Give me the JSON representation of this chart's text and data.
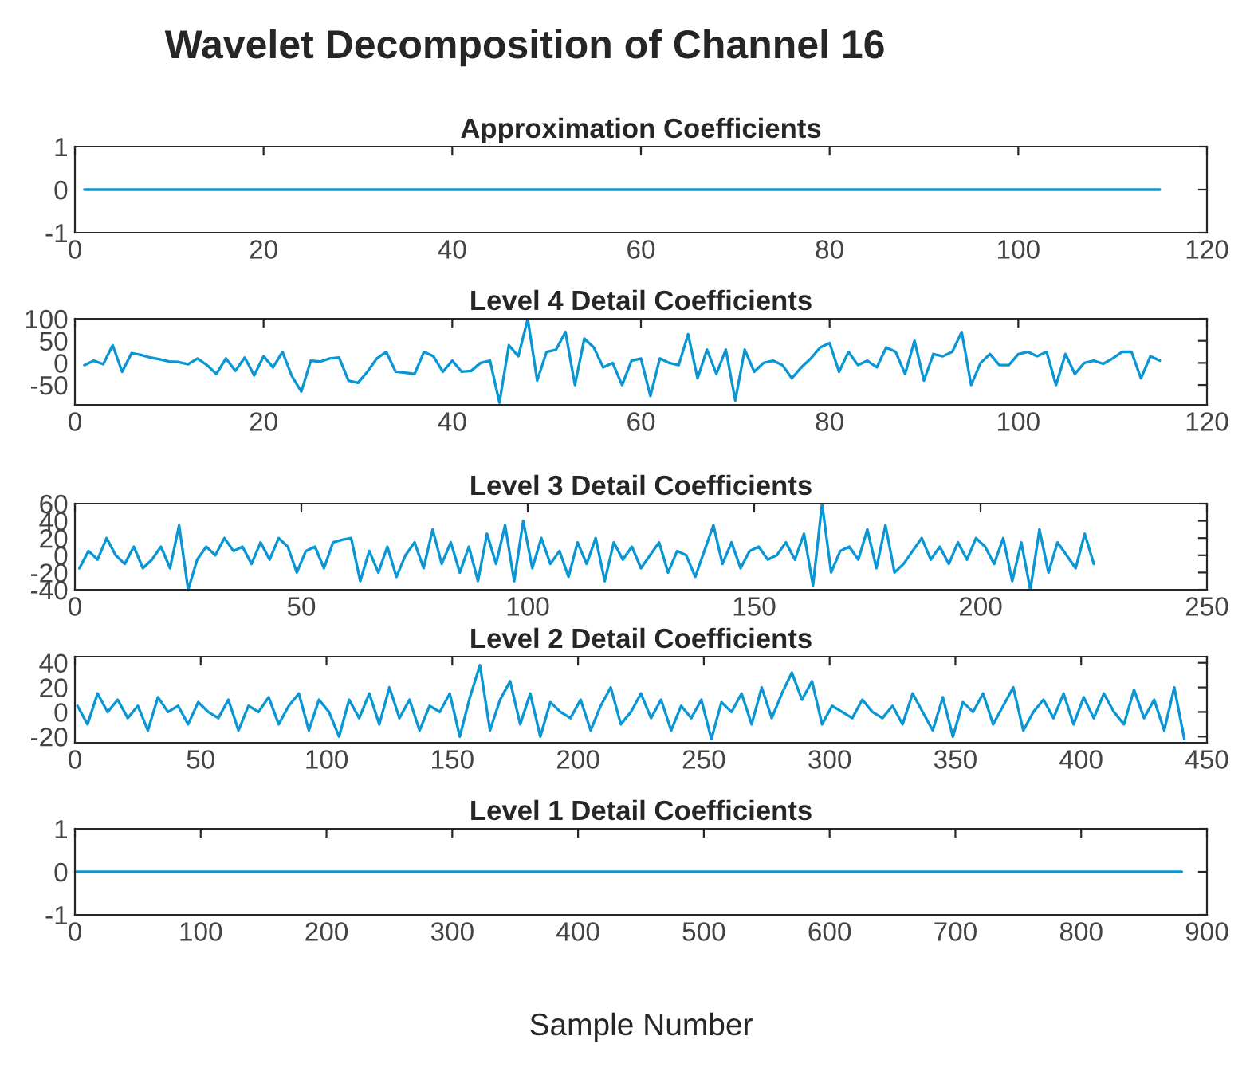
{
  "chart_data": [
    {
      "type": "line",
      "title": "Approximation Coefficients",
      "annotations": [
        "Wavelet Decomposition of Channel 16"
      ],
      "xlim": [
        0,
        120
      ],
      "xticks": [
        0,
        20,
        40,
        60,
        80,
        100,
        120
      ],
      "ylim": [
        -1,
        1
      ],
      "yticks": [
        -1,
        0,
        1
      ],
      "series": [
        {
          "color": "#0a96d4",
          "x": [
            1,
            115
          ],
          "values": [
            0,
            0
          ]
        }
      ]
    },
    {
      "type": "line",
      "title": "Level 4 Detail Coefficients",
      "xlim": [
        0,
        120
      ],
      "xticks": [
        0,
        20,
        40,
        60,
        80,
        100,
        120
      ],
      "ylim": [
        -95,
        100
      ],
      "yticks": [
        -50,
        0,
        50,
        100
      ],
      "series": [
        {
          "color": "#0a96d4",
          "x": [
            1,
            2,
            3,
            4,
            5,
            6,
            7,
            8,
            9,
            10,
            11,
            12,
            13,
            14,
            15,
            16,
            17,
            18,
            19,
            20,
            21,
            22,
            23,
            24,
            25,
            26,
            27,
            28,
            29,
            30,
            31,
            32,
            33,
            34,
            35,
            36,
            37,
            38,
            39,
            40,
            41,
            42,
            43,
            44,
            45,
            46,
            47,
            48,
            49,
            50,
            51,
            52,
            53,
            54,
            55,
            56,
            57,
            58,
            59,
            60,
            61,
            62,
            63,
            64,
            65,
            66,
            67,
            68,
            69,
            70,
            71,
            72,
            73,
            74,
            75,
            76,
            77,
            78,
            79,
            80,
            81,
            82,
            83,
            84,
            85,
            86,
            87,
            88,
            89,
            90,
            91,
            92,
            93,
            94,
            95,
            96,
            97,
            98,
            99,
            100,
            101,
            102,
            103,
            104,
            105,
            106,
            107,
            108,
            109,
            110,
            111,
            112,
            113,
            114,
            115
          ],
          "values": [
            -5,
            5,
            -3,
            40,
            -20,
            22,
            18,
            12,
            8,
            3,
            2,
            -3,
            10,
            -5,
            -25,
            10,
            -18,
            12,
            -28,
            15,
            -10,
            25,
            -30,
            -65,
            5,
            3,
            10,
            12,
            -40,
            -45,
            -20,
            10,
            25,
            -20,
            -22,
            -25,
            25,
            15,
            -20,
            5,
            -20,
            -18,
            0,
            5,
            -90,
            40,
            15,
            100,
            -40,
            25,
            30,
            70,
            -50,
            55,
            35,
            -10,
            0,
            -50,
            5,
            10,
            -75,
            10,
            0,
            -5,
            65,
            -35,
            30,
            -25,
            30,
            -85,
            30,
            -20,
            0,
            5,
            -5,
            -35,
            -10,
            10,
            35,
            45,
            -20,
            25,
            -5,
            5,
            -10,
            35,
            25,
            -25,
            50,
            -40,
            20,
            15,
            25,
            70,
            -50,
            0,
            20,
            -5,
            -5,
            20,
            25,
            15,
            25,
            -50,
            20,
            -25,
            0,
            5,
            -2,
            10,
            25,
            25,
            -35,
            15,
            5
          ]
        }
      ]
    },
    {
      "type": "line",
      "title": "Level 3 Detail Coefficients",
      "xlim": [
        0,
        250
      ],
      "xticks": [
        0,
        50,
        100,
        150,
        200,
        250
      ],
      "ylim": [
        -40,
        60
      ],
      "yticks": [
        -40,
        -20,
        0,
        20,
        40,
        60
      ],
      "series": [
        {
          "color": "#0a96d4",
          "x": [
            1,
            3,
            5,
            7,
            9,
            11,
            13,
            15,
            17,
            19,
            21,
            23,
            25,
            27,
            29,
            31,
            33,
            35,
            37,
            39,
            41,
            43,
            45,
            47,
            49,
            51,
            53,
            55,
            57,
            59,
            61,
            63,
            65,
            67,
            69,
            71,
            73,
            75,
            77,
            79,
            81,
            83,
            85,
            87,
            89,
            91,
            93,
            95,
            97,
            99,
            101,
            103,
            105,
            107,
            109,
            111,
            113,
            115,
            117,
            119,
            121,
            123,
            125,
            127,
            129,
            131,
            133,
            135,
            137,
            139,
            141,
            143,
            145,
            147,
            149,
            151,
            153,
            155,
            157,
            159,
            161,
            163,
            165,
            167,
            169,
            171,
            173,
            175,
            177,
            179,
            181,
            183,
            185,
            187,
            189,
            191,
            193,
            195,
            197,
            199,
            201,
            203,
            205,
            207,
            209,
            211,
            213,
            215,
            217,
            219,
            221,
            223,
            225
          ],
          "values": [
            -15,
            5,
            -5,
            20,
            0,
            -10,
            10,
            -15,
            -5,
            10,
            -15,
            35,
            -40,
            -5,
            10,
            0,
            20,
            5,
            10,
            -10,
            15,
            -5,
            20,
            10,
            -20,
            5,
            10,
            -15,
            15,
            18,
            20,
            -30,
            5,
            -20,
            10,
            -25,
            0,
            15,
            -15,
            30,
            -10,
            15,
            -20,
            10,
            -30,
            25,
            -10,
            35,
            -30,
            40,
            -15,
            20,
            -10,
            5,
            -25,
            15,
            -10,
            20,
            -30,
            15,
            -5,
            10,
            -15,
            0,
            15,
            -20,
            5,
            0,
            -25,
            5,
            35,
            -10,
            15,
            -15,
            5,
            10,
            -5,
            0,
            15,
            -5,
            25,
            -35,
            60,
            -20,
            5,
            10,
            -5,
            30,
            -15,
            35,
            -20,
            -10,
            5,
            20,
            -5,
            10,
            -10,
            15,
            -5,
            20,
            10,
            -10,
            20,
            -30,
            15,
            -40,
            30,
            -20,
            15,
            0,
            -15,
            25,
            -10
          ]
        }
      ]
    },
    {
      "type": "line",
      "title": "Level 2 Detail Coefficients",
      "xlim": [
        0,
        450
      ],
      "xticks": [
        0,
        50,
        100,
        150,
        200,
        250,
        300,
        350,
        400,
        450
      ],
      "ylim": [
        -25,
        45
      ],
      "yticks": [
        -20,
        0,
        20,
        40
      ],
      "series": [
        {
          "color": "#0a96d4",
          "x": [
            1,
            5,
            9,
            13,
            17,
            21,
            25,
            29,
            33,
            37,
            41,
            45,
            49,
            53,
            57,
            61,
            65,
            69,
            73,
            77,
            81,
            85,
            89,
            93,
            97,
            101,
            105,
            109,
            113,
            117,
            121,
            125,
            129,
            133,
            137,
            141,
            145,
            149,
            153,
            157,
            161,
            165,
            169,
            173,
            177,
            181,
            185,
            189,
            193,
            197,
            201,
            205,
            209,
            213,
            217,
            221,
            225,
            229,
            233,
            237,
            241,
            245,
            249,
            253,
            257,
            261,
            265,
            269,
            273,
            277,
            281,
            285,
            289,
            293,
            297,
            301,
            305,
            309,
            313,
            317,
            321,
            325,
            329,
            333,
            337,
            341,
            345,
            349,
            353,
            357,
            361,
            365,
            369,
            373,
            377,
            381,
            385,
            389,
            393,
            397,
            401,
            405,
            409,
            413,
            417,
            421,
            425,
            429,
            433,
            437,
            441
          ],
          "values": [
            5,
            -10,
            15,
            0,
            10,
            -5,
            5,
            -15,
            12,
            0,
            5,
            -10,
            8,
            0,
            -5,
            10,
            -15,
            5,
            0,
            12,
            -10,
            5,
            15,
            -15,
            10,
            0,
            -20,
            10,
            -5,
            15,
            -10,
            20,
            -5,
            10,
            -15,
            5,
            0,
            15,
            -20,
            12,
            38,
            -15,
            10,
            25,
            -10,
            15,
            -20,
            8,
            0,
            -5,
            10,
            -15,
            5,
            20,
            -10,
            0,
            15,
            -5,
            10,
            -15,
            5,
            -5,
            10,
            -22,
            8,
            0,
            15,
            -10,
            20,
            -5,
            15,
            32,
            10,
            25,
            -10,
            5,
            0,
            -5,
            10,
            0,
            -5,
            5,
            -10,
            15,
            0,
            -15,
            12,
            -20,
            8,
            0,
            15,
            -10,
            5,
            20,
            -15,
            0,
            10,
            -5,
            15,
            -10,
            12,
            -5,
            15,
            0,
            -10,
            18,
            -5,
            10,
            -15,
            20,
            -22
          ]
        }
      ]
    },
    {
      "type": "line",
      "title": "Level 1 Detail Coefficients",
      "xlabel": "Sample Number",
      "xlim": [
        0,
        900
      ],
      "xticks": [
        0,
        100,
        200,
        300,
        400,
        500,
        600,
        700,
        800,
        900
      ],
      "ylim": [
        -1,
        1
      ],
      "yticks": [
        -1,
        0,
        1
      ],
      "series": [
        {
          "color": "#0a96d4",
          "x": [
            1,
            880
          ],
          "values": [
            0,
            0
          ]
        }
      ]
    }
  ]
}
